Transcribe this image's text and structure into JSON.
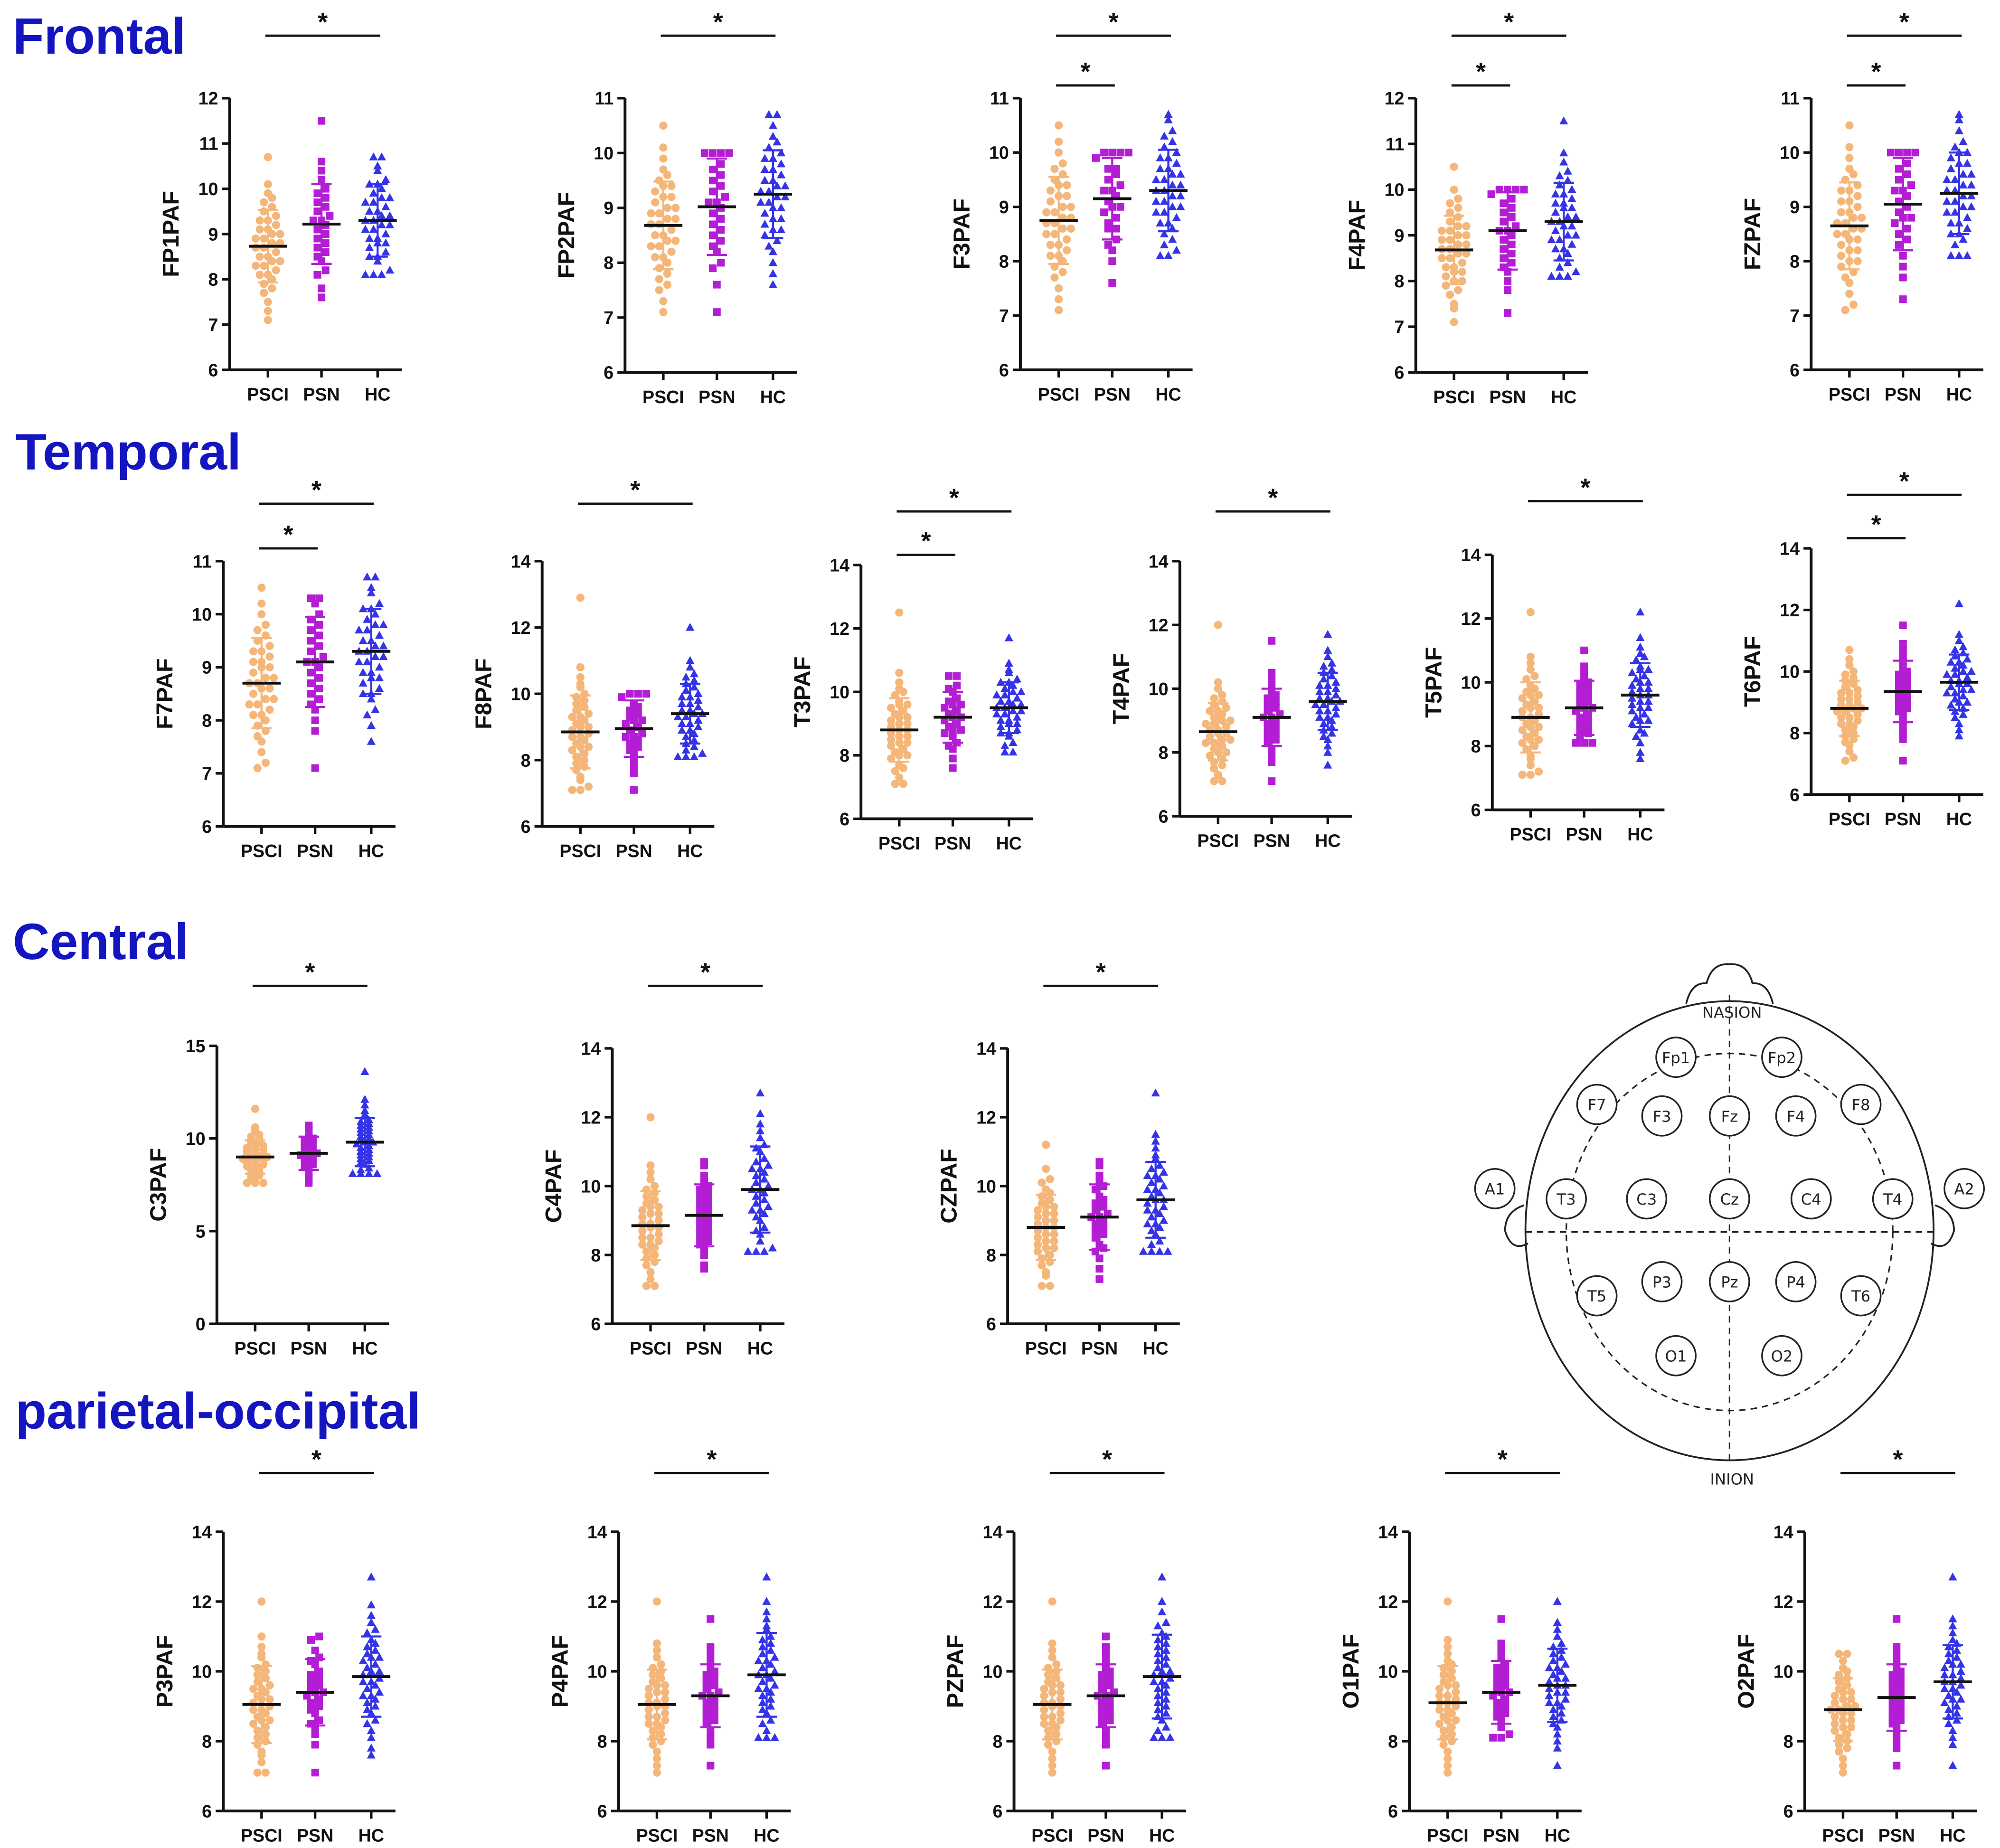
{
  "sections": [
    {
      "title": "Frontal"
    },
    {
      "title": "Temporal"
    },
    {
      "title": "Central"
    },
    {
      "title": "parietal-occipital"
    }
  ],
  "colors": {
    "PSCI": "#f4b679",
    "PSN": "#b31dd3",
    "HC": "#3434e6",
    "section_title": "#1515c0"
  },
  "head": {
    "nasion": "NASION",
    "inion": "INION",
    "electrodes": [
      "Fp1",
      "Fp2",
      "F7",
      "F3",
      "Fz",
      "F4",
      "F8",
      "A1",
      "T3",
      "C3",
      "Cz",
      "C4",
      "T4",
      "A2",
      "T5",
      "P3",
      "Pz",
      "P4",
      "T6",
      "O1",
      "O2"
    ]
  },
  "chart_data": [
    {
      "type": "scatter",
      "ylabel": "FP1PAF",
      "ylim": [
        6,
        12
      ],
      "yticks": [
        6,
        7,
        8,
        9,
        10,
        11,
        12
      ],
      "categories": [
        "PSCI",
        "PSN",
        "HC"
      ],
      "series": [
        {
          "name": "PSCI",
          "mean": 8.73,
          "sd": 0.8,
          "min": 7.1,
          "max": 10.7,
          "n": 38
        },
        {
          "name": "PSN",
          "mean": 9.22,
          "sd": 0.88,
          "min": 7.6,
          "max": 11.5,
          "n": 26
        },
        {
          "name": "HC",
          "mean": 9.3,
          "sd": 0.8,
          "min": 8.1,
          "max": 10.7,
          "n": 38
        }
      ],
      "significance": [
        {
          "pair": [
            0,
            2
          ],
          "label": "*"
        }
      ]
    },
    {
      "type": "scatter",
      "ylabel": "FP2PAF",
      "ylim": [
        6,
        11
      ],
      "yticks": [
        6,
        7,
        8,
        9,
        10,
        11
      ],
      "categories": [
        "PSCI",
        "PSN",
        "HC"
      ],
      "series": [
        {
          "name": "PSCI",
          "mean": 8.68,
          "sd": 0.8,
          "min": 7.1,
          "max": 10.5,
          "n": 38
        },
        {
          "name": "PSN",
          "mean": 9.02,
          "sd": 0.88,
          "min": 7.1,
          "max": 10.0,
          "n": 26
        },
        {
          "name": "HC",
          "mean": 9.25,
          "sd": 0.8,
          "min": 7.6,
          "max": 10.7,
          "n": 38
        }
      ],
      "significance": [
        {
          "pair": [
            0,
            2
          ],
          "label": "*"
        }
      ]
    },
    {
      "type": "scatter",
      "ylabel": "F3PAF",
      "ylim": [
        6,
        11
      ],
      "yticks": [
        6,
        7,
        8,
        9,
        10,
        11
      ],
      "categories": [
        "PSCI",
        "PSN",
        "HC"
      ],
      "series": [
        {
          "name": "PSCI",
          "mean": 8.75,
          "sd": 0.8,
          "min": 7.1,
          "max": 10.5,
          "n": 38
        },
        {
          "name": "PSN",
          "mean": 9.15,
          "sd": 0.75,
          "min": 7.6,
          "max": 10.0,
          "n": 26
        },
        {
          "name": "HC",
          "mean": 9.3,
          "sd": 0.75,
          "min": 8.1,
          "max": 10.7,
          "n": 38
        }
      ],
      "significance": [
        {
          "pair": [
            0,
            2
          ],
          "label": "*"
        },
        {
          "pair": [
            0,
            1
          ],
          "label": "*"
        }
      ]
    },
    {
      "type": "scatter",
      "ylabel": "F4PAF",
      "ylim": [
        6,
        12
      ],
      "yticks": [
        6,
        7,
        8,
        9,
        10,
        11,
        12
      ],
      "categories": [
        "PSCI",
        "PSN",
        "HC"
      ],
      "series": [
        {
          "name": "PSCI",
          "mean": 8.68,
          "sd": 0.75,
          "min": 7.1,
          "max": 10.5,
          "n": 38
        },
        {
          "name": "PSN",
          "mean": 9.1,
          "sd": 0.85,
          "min": 7.3,
          "max": 10.0,
          "n": 26
        },
        {
          "name": "HC",
          "mean": 9.3,
          "sd": 0.85,
          "min": 8.1,
          "max": 11.5,
          "n": 38
        }
      ],
      "significance": [
        {
          "pair": [
            0,
            2
          ],
          "label": "*"
        },
        {
          "pair": [
            0,
            1
          ],
          "label": "*"
        }
      ]
    },
    {
      "type": "scatter",
      "ylabel": "FZPAF",
      "ylim": [
        6,
        11
      ],
      "yticks": [
        6,
        7,
        8,
        9,
        10,
        11
      ],
      "categories": [
        "PSCI",
        "PSN",
        "HC"
      ],
      "series": [
        {
          "name": "PSCI",
          "mean": 8.65,
          "sd": 0.8,
          "min": 7.1,
          "max": 10.5,
          "n": 38
        },
        {
          "name": "PSN",
          "mean": 9.05,
          "sd": 0.85,
          "min": 7.3,
          "max": 10.0,
          "n": 26
        },
        {
          "name": "HC",
          "mean": 9.25,
          "sd": 0.75,
          "min": 8.1,
          "max": 10.7,
          "n": 38
        }
      ],
      "significance": [
        {
          "pair": [
            0,
            2
          ],
          "label": "*"
        },
        {
          "pair": [
            0,
            1
          ],
          "label": "*"
        }
      ]
    },
    {
      "type": "scatter",
      "ylabel": "F7PAF",
      "ylim": [
        6,
        11
      ],
      "yticks": [
        6,
        7,
        8,
        9,
        10,
        11
      ],
      "categories": [
        "PSCI",
        "PSN",
        "HC"
      ],
      "series": [
        {
          "name": "PSCI",
          "mean": 8.7,
          "sd": 0.85,
          "min": 7.1,
          "max": 10.5,
          "n": 38
        },
        {
          "name": "PSN",
          "mean": 9.1,
          "sd": 0.85,
          "min": 7.1,
          "max": 10.3,
          "n": 26
        },
        {
          "name": "HC",
          "mean": 9.3,
          "sd": 0.8,
          "min": 7.6,
          "max": 10.7,
          "n": 38
        }
      ],
      "significance": [
        {
          "pair": [
            0,
            2
          ],
          "label": "*"
        },
        {
          "pair": [
            0,
            1
          ],
          "label": "*"
        }
      ]
    },
    {
      "type": "scatter",
      "ylabel": "F8PAF",
      "ylim": [
        6,
        14
      ],
      "yticks": [
        6,
        8,
        10,
        12,
        14
      ],
      "categories": [
        "PSCI",
        "PSN",
        "HC"
      ],
      "series": [
        {
          "name": "PSCI",
          "mean": 8.85,
          "sd": 1.1,
          "min": 7.1,
          "max": 12.9,
          "n": 38
        },
        {
          "name": "PSN",
          "mean": 8.95,
          "sd": 0.85,
          "min": 7.1,
          "max": 10.0,
          "n": 26
        },
        {
          "name": "HC",
          "mean": 9.4,
          "sd": 0.9,
          "min": 8.1,
          "max": 12.0,
          "n": 38
        }
      ],
      "significance": [
        {
          "pair": [
            0,
            2
          ],
          "label": "*"
        }
      ]
    },
    {
      "type": "scatter",
      "ylabel": "T3PAF",
      "ylim": [
        6,
        14
      ],
      "yticks": [
        6,
        8,
        10,
        12,
        14
      ],
      "categories": [
        "PSCI",
        "PSN",
        "HC"
      ],
      "series": [
        {
          "name": "PSCI",
          "mean": 8.8,
          "sd": 1.0,
          "min": 7.1,
          "max": 12.5,
          "n": 38
        },
        {
          "name": "PSN",
          "mean": 9.2,
          "sd": 0.8,
          "min": 7.6,
          "max": 10.5,
          "n": 26
        },
        {
          "name": "HC",
          "mean": 9.5,
          "sd": 0.8,
          "min": 8.1,
          "max": 11.7,
          "n": 38
        }
      ],
      "significance": [
        {
          "pair": [
            0,
            2
          ],
          "label": "*"
        },
        {
          "pair": [
            0,
            1
          ],
          "label": "*"
        }
      ]
    },
    {
      "type": "scatter",
      "ylabel": "T4PAF",
      "ylim": [
        6,
        14
      ],
      "yticks": [
        6,
        8,
        10,
        12,
        14
      ],
      "categories": [
        "PSCI",
        "PSN",
        "HC"
      ],
      "series": [
        {
          "name": "PSCI",
          "mean": 8.65,
          "sd": 0.9,
          "min": 7.1,
          "max": 12.0,
          "n": 38
        },
        {
          "name": "PSN",
          "mean": 9.1,
          "sd": 0.9,
          "min": 7.1,
          "max": 11.5,
          "n": 26
        },
        {
          "name": "HC",
          "mean": 9.6,
          "sd": 0.9,
          "min": 7.6,
          "max": 11.7,
          "n": 38
        }
      ],
      "significance": [
        {
          "pair": [
            0,
            2
          ],
          "label": "*"
        }
      ]
    },
    {
      "type": "scatter",
      "ylabel": "T5PAF",
      "ylim": [
        6,
        14
      ],
      "yticks": [
        6,
        8,
        10,
        12,
        14
      ],
      "categories": [
        "PSCI",
        "PSN",
        "HC"
      ],
      "series": [
        {
          "name": "PSCI",
          "mean": 8.9,
          "sd": 1.1,
          "min": 7.1,
          "max": 12.2,
          "n": 38
        },
        {
          "name": "PSN",
          "mean": 9.2,
          "sd": 0.85,
          "min": 8.1,
          "max": 11.0,
          "n": 26
        },
        {
          "name": "HC",
          "mean": 9.6,
          "sd": 1.0,
          "min": 7.6,
          "max": 12.2,
          "n": 38
        }
      ],
      "significance": [
        {
          "pair": [
            0,
            2
          ],
          "label": "*"
        }
      ]
    },
    {
      "type": "scatter",
      "ylabel": "T6PAF",
      "ylim": [
        6,
        14
      ],
      "yticks": [
        6,
        8,
        10,
        12,
        14
      ],
      "categories": [
        "PSCI",
        "PSN",
        "HC"
      ],
      "series": [
        {
          "name": "PSCI",
          "mean": 8.8,
          "sd": 0.9,
          "min": 7.1,
          "max": 10.7,
          "n": 38
        },
        {
          "name": "PSN",
          "mean": 9.35,
          "sd": 1.0,
          "min": 7.1,
          "max": 11.5,
          "n": 26
        },
        {
          "name": "HC",
          "mean": 9.65,
          "sd": 0.9,
          "min": 7.9,
          "max": 12.2,
          "n": 38
        }
      ],
      "significance": [
        {
          "pair": [
            0,
            2
          ],
          "label": "*"
        },
        {
          "pair": [
            0,
            1
          ],
          "label": "*"
        }
      ]
    },
    {
      "type": "scatter",
      "ylabel": "C3PAF",
      "ylim": [
        0,
        15
      ],
      "yticks": [
        0,
        5,
        10,
        15
      ],
      "categories": [
        "PSCI",
        "PSN",
        "HC"
      ],
      "series": [
        {
          "name": "PSCI",
          "mean": 9.0,
          "sd": 0.9,
          "min": 7.6,
          "max": 11.6,
          "n": 38
        },
        {
          "name": "PSN",
          "mean": 9.2,
          "sd": 0.9,
          "min": 7.6,
          "max": 10.7,
          "n": 26
        },
        {
          "name": "HC",
          "mean": 9.8,
          "sd": 1.3,
          "min": 8.1,
          "max": 13.6,
          "n": 38
        }
      ],
      "significance": [
        {
          "pair": [
            0,
            2
          ],
          "label": "*"
        }
      ]
    },
    {
      "type": "scatter",
      "ylabel": "C4PAF",
      "ylim": [
        6,
        14
      ],
      "yticks": [
        6,
        8,
        10,
        12,
        14
      ],
      "categories": [
        "PSCI",
        "PSN",
        "HC"
      ],
      "series": [
        {
          "name": "PSCI",
          "mean": 8.85,
          "sd": 1.0,
          "min": 7.1,
          "max": 12.0,
          "n": 38
        },
        {
          "name": "PSN",
          "mean": 9.15,
          "sd": 0.9,
          "min": 7.6,
          "max": 10.7,
          "n": 26
        },
        {
          "name": "HC",
          "mean": 9.9,
          "sd": 1.25,
          "min": 8.1,
          "max": 12.7,
          "n": 38
        }
      ],
      "significance": [
        {
          "pair": [
            0,
            2
          ],
          "label": "*"
        }
      ]
    },
    {
      "type": "scatter",
      "ylabel": "CZPAF",
      "ylim": [
        6,
        14
      ],
      "yticks": [
        6,
        8,
        10,
        12,
        14
      ],
      "categories": [
        "PSCI",
        "PSN",
        "HC"
      ],
      "series": [
        {
          "name": "PSCI",
          "mean": 8.8,
          "sd": 0.95,
          "min": 7.1,
          "max": 11.2,
          "n": 38
        },
        {
          "name": "PSN",
          "mean": 9.1,
          "sd": 0.95,
          "min": 7.3,
          "max": 10.7,
          "n": 26
        },
        {
          "name": "HC",
          "mean": 9.6,
          "sd": 1.1,
          "min": 8.1,
          "max": 12.7,
          "n": 38
        }
      ],
      "significance": [
        {
          "pair": [
            0,
            2
          ],
          "label": "*"
        }
      ]
    },
    {
      "type": "scatter",
      "ylabel": "P3PAF",
      "ylim": [
        6,
        14
      ],
      "yticks": [
        6,
        8,
        10,
        12,
        14
      ],
      "categories": [
        "PSCI",
        "PSN",
        "HC"
      ],
      "series": [
        {
          "name": "PSCI",
          "mean": 9.05,
          "sd": 1.1,
          "min": 7.1,
          "max": 12.0,
          "n": 38
        },
        {
          "name": "PSN",
          "mean": 9.4,
          "sd": 0.95,
          "min": 7.1,
          "max": 11.0,
          "n": 26
        },
        {
          "name": "HC",
          "mean": 9.85,
          "sd": 1.15,
          "min": 7.6,
          "max": 12.7,
          "n": 38
        }
      ],
      "significance": [
        {
          "pair": [
            0,
            2
          ],
          "label": "*"
        }
      ]
    },
    {
      "type": "scatter",
      "ylabel": "P4PAF",
      "ylim": [
        6,
        14
      ],
      "yticks": [
        6,
        8,
        10,
        12,
        14
      ],
      "categories": [
        "PSCI",
        "PSN",
        "HC"
      ],
      "series": [
        {
          "name": "PSCI",
          "mean": 9.05,
          "sd": 1.0,
          "min": 7.1,
          "max": 12.0,
          "n": 38
        },
        {
          "name": "PSN",
          "mean": 9.3,
          "sd": 0.9,
          "min": 7.3,
          "max": 11.5,
          "n": 26
        },
        {
          "name": "HC",
          "mean": 9.9,
          "sd": 1.2,
          "min": 8.1,
          "max": 12.7,
          "n": 38
        }
      ],
      "significance": [
        {
          "pair": [
            0,
            2
          ],
          "label": "*"
        }
      ]
    },
    {
      "type": "scatter",
      "ylabel": "PZPAF",
      "ylim": [
        6,
        14
      ],
      "yticks": [
        6,
        8,
        10,
        12,
        14
      ],
      "categories": [
        "PSCI",
        "PSN",
        "HC"
      ],
      "series": [
        {
          "name": "PSCI",
          "mean": 9.05,
          "sd": 1.0,
          "min": 7.1,
          "max": 12.0,
          "n": 38
        },
        {
          "name": "PSN",
          "mean": 9.3,
          "sd": 0.9,
          "min": 7.3,
          "max": 11.0,
          "n": 26
        },
        {
          "name": "HC",
          "mean": 9.85,
          "sd": 1.2,
          "min": 8.1,
          "max": 12.7,
          "n": 38
        }
      ],
      "significance": [
        {
          "pair": [
            0,
            2
          ],
          "label": "*"
        }
      ]
    },
    {
      "type": "scatter",
      "ylabel": "O1PAF",
      "ylim": [
        6,
        14
      ],
      "yticks": [
        6,
        8,
        10,
        12,
        14
      ],
      "categories": [
        "PSCI",
        "PSN",
        "HC"
      ],
      "series": [
        {
          "name": "PSCI",
          "mean": 9.1,
          "sd": 1.05,
          "min": 7.1,
          "max": 12.0,
          "n": 38
        },
        {
          "name": "PSN",
          "mean": 9.4,
          "sd": 0.9,
          "min": 8.1,
          "max": 11.5,
          "n": 26
        },
        {
          "name": "HC",
          "mean": 9.6,
          "sd": 1.05,
          "min": 7.3,
          "max": 12.0,
          "n": 38
        }
      ],
      "significance": [
        {
          "pair": [
            0,
            2
          ],
          "label": "*"
        }
      ]
    },
    {
      "type": "scatter",
      "ylabel": "O2PAF",
      "ylim": [
        6,
        14
      ],
      "yticks": [
        6,
        8,
        10,
        12,
        14
      ],
      "categories": [
        "PSCI",
        "PSN",
        "HC"
      ],
      "series": [
        {
          "name": "PSCI",
          "mean": 8.9,
          "sd": 0.9,
          "min": 7.1,
          "max": 10.5,
          "n": 38
        },
        {
          "name": "PSN",
          "mean": 9.25,
          "sd": 0.95,
          "min": 7.3,
          "max": 11.5,
          "n": 26
        },
        {
          "name": "HC",
          "mean": 9.7,
          "sd": 1.05,
          "min": 7.3,
          "max": 12.7,
          "n": 38
        }
      ],
      "significance": [
        {
          "pair": [
            0,
            2
          ],
          "label": "*"
        }
      ]
    }
  ]
}
